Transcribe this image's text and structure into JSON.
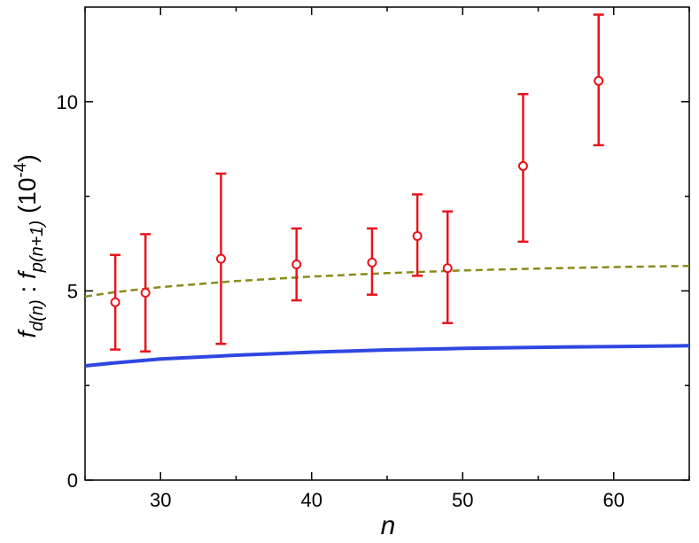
{
  "chart_data": {
    "type": "scatter",
    "title": "",
    "xlabel": "n",
    "ylabel": {
      "f1": "f",
      "s1": "d",
      "a1": "(n)",
      "sep": " : ",
      "f2": "f",
      "s2": "p",
      "a2": "(n+1)",
      "unit": " (10",
      "exp": "-4",
      "close": ")"
    },
    "xlim": [
      25,
      65
    ],
    "ylim": [
      0,
      12.5
    ],
    "x_ticks": [
      30,
      40,
      50,
      60
    ],
    "x_tick_labels": [
      "30",
      "40",
      "50",
      "60"
    ],
    "x_minor_ticks": [
      25,
      35,
      45,
      55,
      65
    ],
    "y_ticks": [
      0,
      5,
      10
    ],
    "y_tick_labels": [
      "0",
      "5",
      "10"
    ],
    "y_minor_ticks": [
      2.5,
      7.5
    ],
    "grid": false,
    "legend": "none",
    "series": [
      {
        "kind": "errorbar",
        "color": "#e8141c",
        "marker": "open-circle",
        "points": [
          {
            "x": 27,
            "y": 4.7,
            "ylo": 3.45,
            "yhi": 5.95
          },
          {
            "x": 29,
            "y": 4.95,
            "ylo": 3.4,
            "yhi": 6.5
          },
          {
            "x": 34,
            "y": 5.85,
            "ylo": 3.6,
            "yhi": 8.1
          },
          {
            "x": 39,
            "y": 5.7,
            "ylo": 4.75,
            "yhi": 6.65
          },
          {
            "x": 44,
            "y": 5.75,
            "ylo": 4.9,
            "yhi": 6.65
          },
          {
            "x": 47,
            "y": 6.45,
            "ylo": 5.4,
            "yhi": 7.55
          },
          {
            "x": 49,
            "y": 5.6,
            "ylo": 4.15,
            "yhi": 7.1
          },
          {
            "x": 54,
            "y": 8.3,
            "ylo": 6.3,
            "yhi": 10.2
          },
          {
            "x": 59,
            "y": 10.55,
            "ylo": 8.85,
            "yhi": 12.3
          }
        ]
      },
      {
        "kind": "line",
        "style": "dashed",
        "color": "#8a8a1a",
        "x": [
          25,
          27,
          30,
          35,
          40,
          45,
          50,
          55,
          60,
          65
        ],
        "y": [
          4.85,
          4.97,
          5.1,
          5.26,
          5.38,
          5.47,
          5.54,
          5.59,
          5.63,
          5.66
        ]
      },
      {
        "kind": "line",
        "style": "solid",
        "color": "#2f47e0",
        "x": [
          25,
          27,
          30,
          35,
          40,
          45,
          50,
          55,
          60,
          65
        ],
        "y": [
          3.02,
          3.1,
          3.2,
          3.3,
          3.38,
          3.44,
          3.48,
          3.51,
          3.53,
          3.55
        ]
      }
    ]
  }
}
